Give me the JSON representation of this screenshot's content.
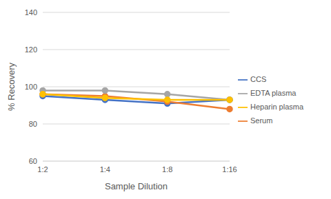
{
  "chart_data": {
    "type": "line",
    "x_label": "Sample Dilution",
    "y_label": "% Recovery",
    "categories": [
      "1:2",
      "1:4",
      "1:8",
      "1:16"
    ],
    "series": [
      {
        "name": "CCS",
        "color": "#4472c4",
        "values": [
          95,
          93,
          91,
          93
        ]
      },
      {
        "name": "Serum",
        "color": "#ed7d31",
        "values": [
          96,
          95,
          92,
          88
        ]
      },
      {
        "name": "EDTA plasma",
        "color": "#a5a5a5",
        "values": [
          98,
          98,
          96,
          93
        ]
      },
      {
        "name": "Heparin plasma",
        "color": "#ffc000",
        "values": [
          96,
          94,
          93,
          93
        ]
      }
    ],
    "ylim": [
      60,
      140
    ],
    "yticks": [
      60,
      80,
      100,
      120,
      140
    ],
    "grid": true,
    "legend": "right",
    "marker": "circle"
  }
}
